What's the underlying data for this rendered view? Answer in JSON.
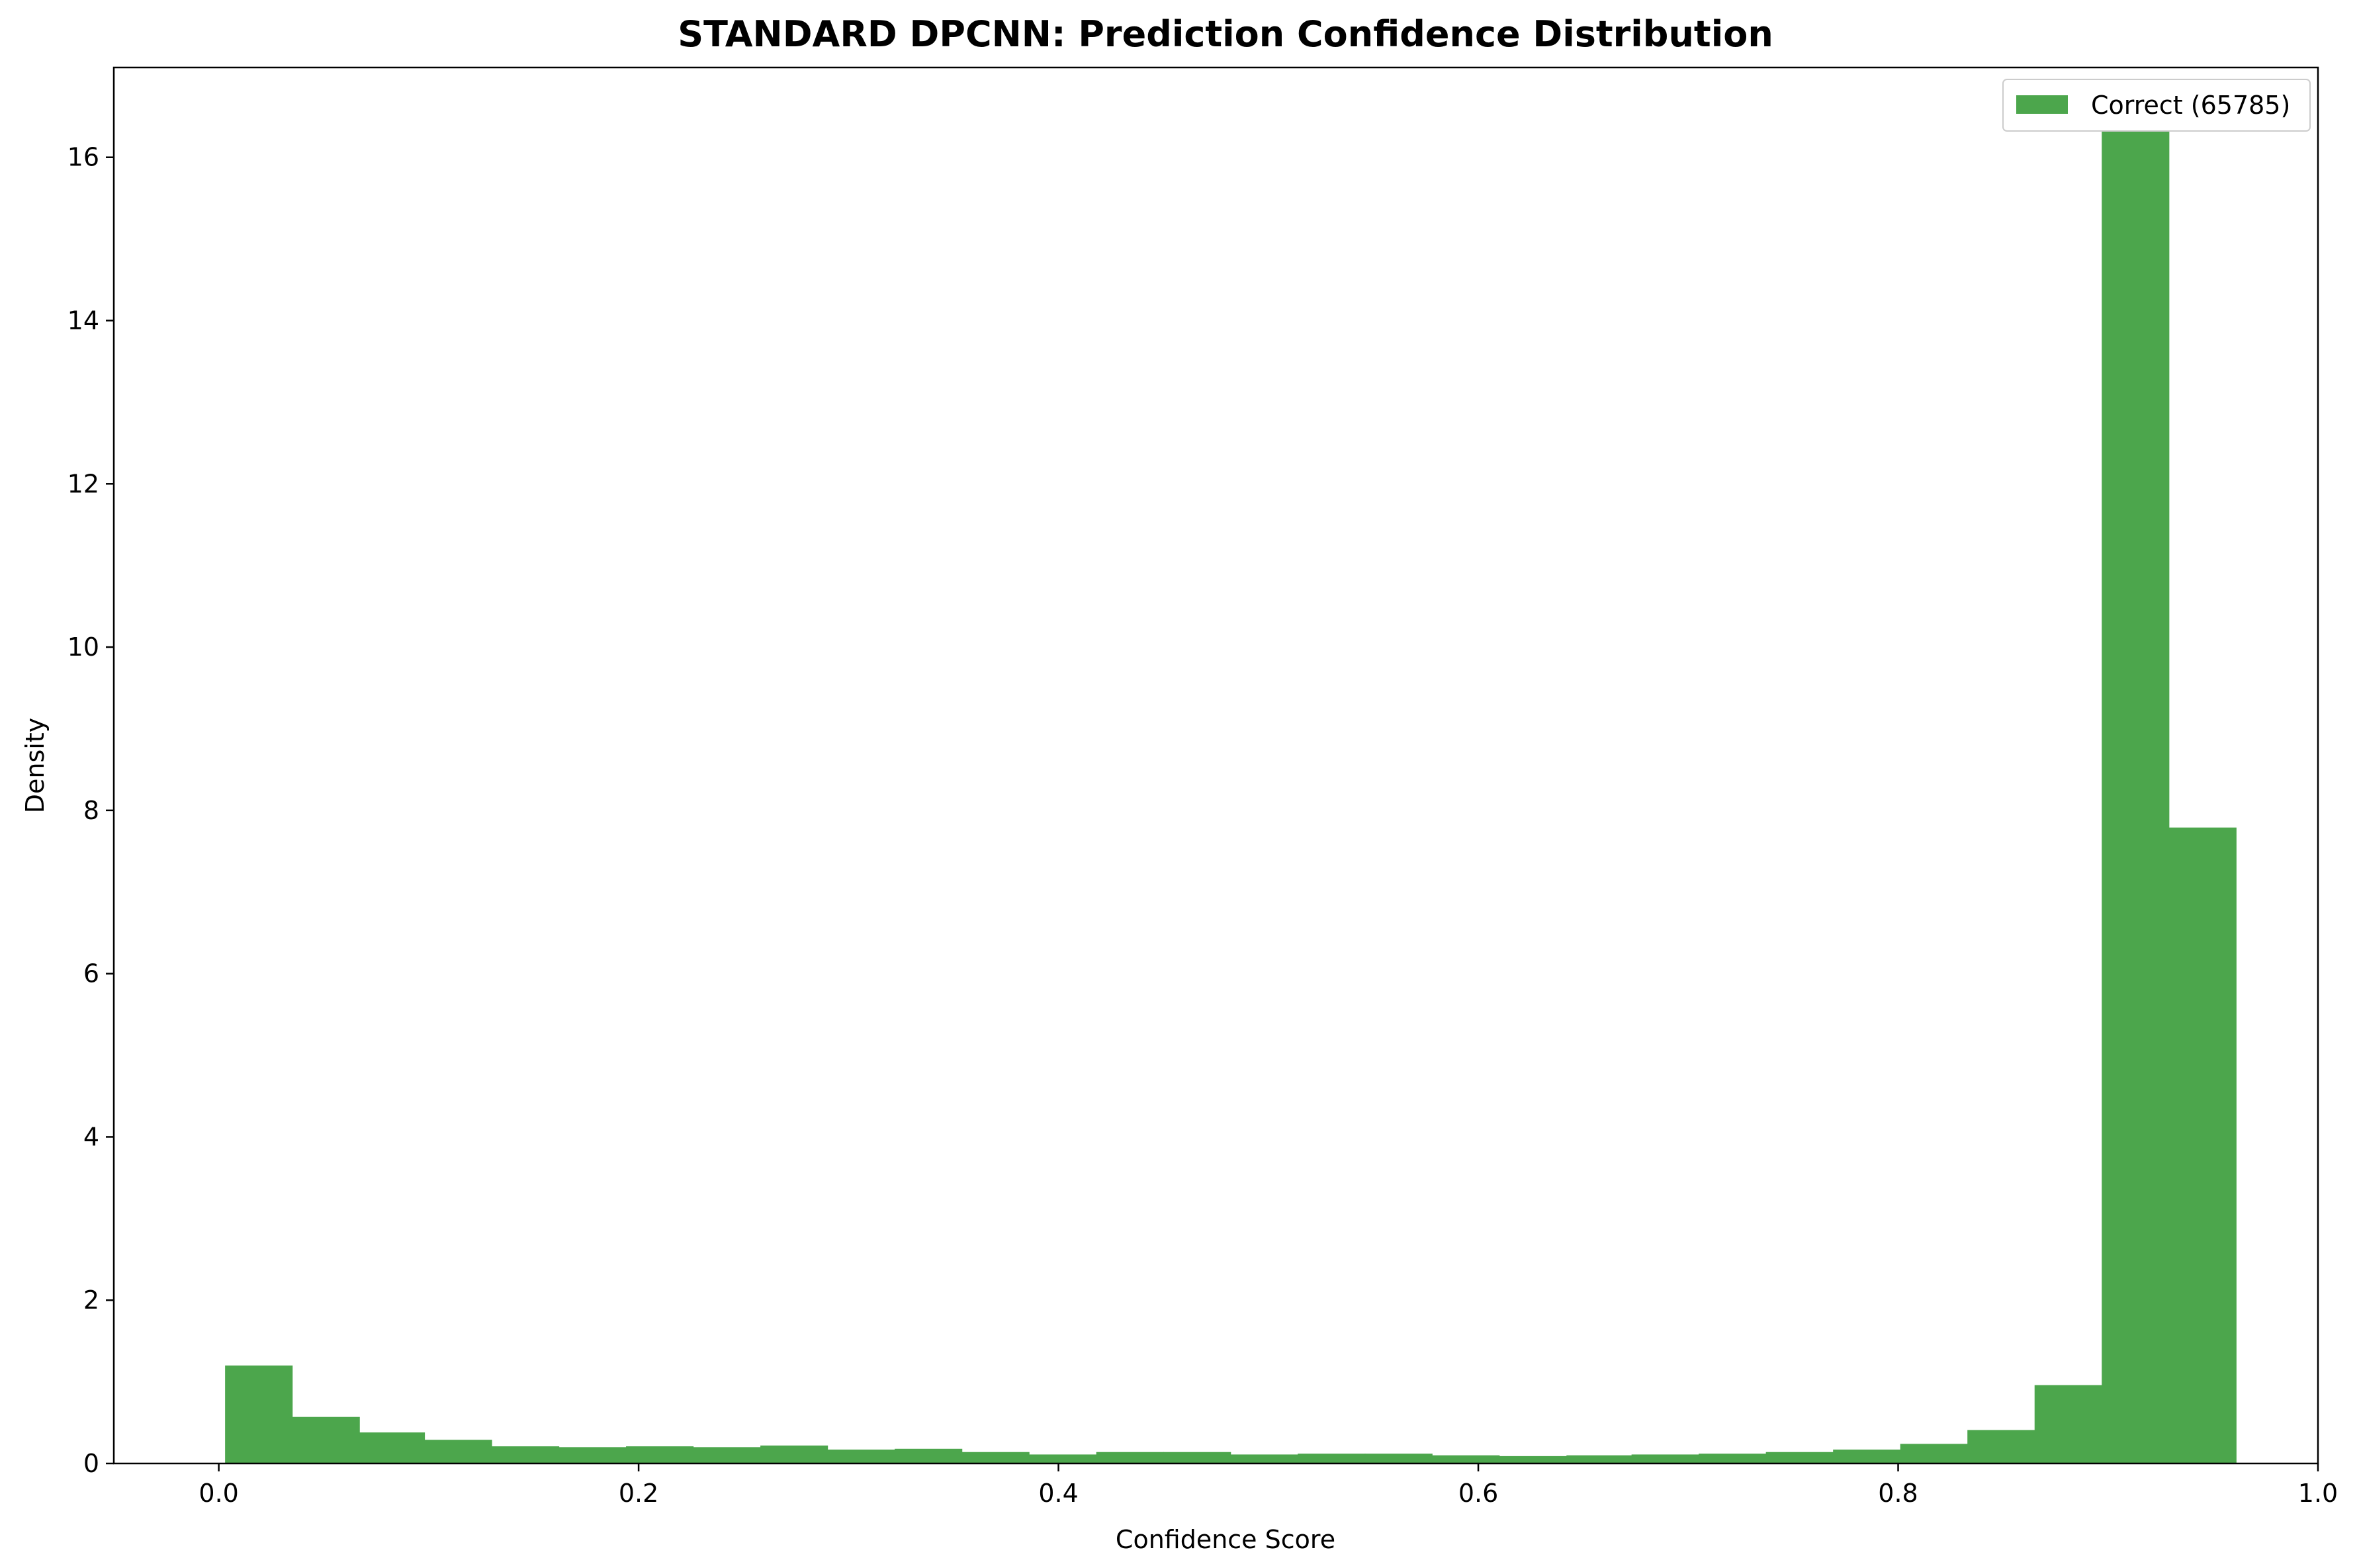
{
  "chart_data": {
    "type": "bar",
    "title": "STANDARD DPCNN: Prediction Confidence Distribution",
    "xlabel": "Confidence Score",
    "ylabel": "Density",
    "xlim": [
      -0.05,
      1.0
    ],
    "ylim": [
      0,
      17.1
    ],
    "xticks": [
      "0.0",
      "0.2",
      "0.4",
      "0.6",
      "0.8",
      "1.0"
    ],
    "yticks": [
      "0",
      "2",
      "4",
      "6",
      "8",
      "10",
      "12",
      "14",
      "16"
    ],
    "grid": false,
    "legend_position": "top-right",
    "color": "#4ca64c",
    "bin_edges": [
      0.003,
      0.035,
      0.067,
      0.098,
      0.13,
      0.162,
      0.194,
      0.226,
      0.258,
      0.29,
      0.322,
      0.354,
      0.386,
      0.418,
      0.45,
      0.482,
      0.514,
      0.546,
      0.578,
      0.61,
      0.642,
      0.673,
      0.705,
      0.737,
      0.769,
      0.801,
      0.833,
      0.865,
      0.897,
      0.929,
      0.961
    ],
    "series": [
      {
        "name": "Correct (65785)",
        "values": [
          1.2,
          0.57,
          0.38,
          0.29,
          0.21,
          0.2,
          0.21,
          0.2,
          0.22,
          0.17,
          0.18,
          0.14,
          0.11,
          0.14,
          0.14,
          0.11,
          0.12,
          0.12,
          0.1,
          0.09,
          0.1,
          0.11,
          0.12,
          0.14,
          0.17,
          0.24,
          0.41,
          0.96,
          16.35,
          7.79
        ]
      }
    ]
  }
}
